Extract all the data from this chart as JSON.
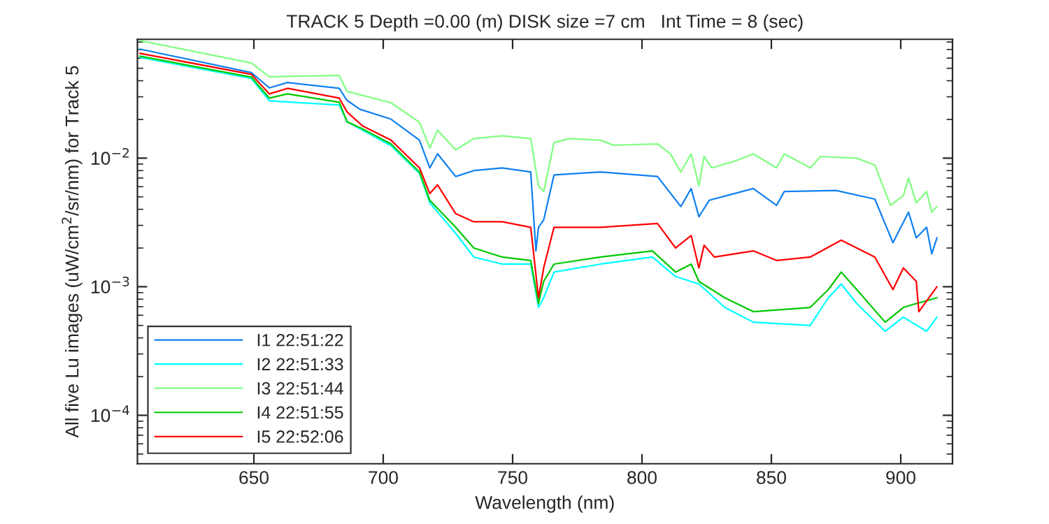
{
  "chart_data": {
    "type": "line",
    "title": "TRACK 5 Depth =0.00 (m) DISK size =7 cm   Int Time = 8 (sec)",
    "xlabel": "Wavelength (nm)",
    "ylabel": "All five Lu images (uW/cm$^{2}$/sr/nm) for Track 5",
    "log": "y",
    "xlim": [
      605,
      920
    ],
    "ylim": [
      4.2e-05,
      0.084
    ],
    "xticks": [
      650,
      700,
      750,
      800,
      850,
      900
    ],
    "yticks": [
      {
        "value": 0.0001,
        "label": "10$^{−4}$"
      },
      {
        "value": 0.001,
        "label": "10$^{−3}$"
      },
      {
        "value": 0.01,
        "label": "10$^{−2}$"
      }
    ],
    "grid": false,
    "legend": "bottom left",
    "line_style": "solid",
    "marker": "none",
    "series": [
      {
        "name": "I1 22:51:22",
        "color": "#1080f0",
        "x": [
          606,
          649,
          656,
          663,
          683,
          686,
          691,
          703,
          714,
          718,
          721,
          728,
          735,
          746,
          757,
          759,
          760,
          762,
          766,
          784,
          806,
          815,
          819,
          822,
          826,
          843,
          852,
          855,
          875,
          890,
          897,
          903,
          906,
          910,
          912,
          914
        ],
        "values": [
          0.0705,
          0.0463,
          0.0352,
          0.0387,
          0.0349,
          0.0281,
          0.024,
          0.0201,
          0.0138,
          0.0084,
          0.0108,
          0.0072,
          0.008,
          0.0084,
          0.0078,
          0.0019,
          0.0029,
          0.0033,
          0.0074,
          0.0078,
          0.0072,
          0.0042,
          0.0058,
          0.0035,
          0.0047,
          0.0058,
          0.0043,
          0.0055,
          0.0056,
          0.0048,
          0.0022,
          0.0038,
          0.0024,
          0.0029,
          0.0018,
          0.0024
        ]
      },
      {
        "name": "I2 22:51:33",
        "color": "#00ffff",
        "x": [
          606,
          649,
          656,
          683,
          686,
          703,
          714,
          718,
          728,
          735,
          746,
          757,
          760,
          762,
          766,
          784,
          804,
          813,
          822,
          832,
          843,
          865,
          872,
          877,
          883,
          894,
          901,
          910,
          914
        ],
        "values": [
          0.0607,
          0.0417,
          0.0279,
          0.0259,
          0.0192,
          0.0125,
          0.0076,
          0.0045,
          0.0026,
          0.0017,
          0.0015,
          0.0015,
          0.00069,
          0.00082,
          0.0013,
          0.0015,
          0.0017,
          0.0012,
          0.00105,
          0.00069,
          0.00053,
          0.0005,
          0.00082,
          0.00105,
          0.00074,
          0.00045,
          0.00058,
          0.00045,
          0.00058
        ]
      },
      {
        "name": "I3 22:51:44",
        "color": "#80ff80",
        "x": [
          606,
          649,
          656,
          683,
          686,
          703,
          714,
          718,
          721,
          728,
          735,
          746,
          757,
          760,
          762,
          766,
          772,
          784,
          789,
          806,
          811,
          815,
          819,
          822,
          824,
          827,
          836,
          843,
          852,
          855,
          865,
          869,
          883,
          890,
          896,
          901,
          903,
          906,
          910,
          912,
          914
        ],
        "values": [
          0.082,
          0.055,
          0.043,
          0.044,
          0.033,
          0.027,
          0.019,
          0.012,
          0.0165,
          0.0116,
          0.0142,
          0.0149,
          0.0142,
          0.0061,
          0.0055,
          0.0132,
          0.0142,
          0.0138,
          0.0126,
          0.0129,
          0.0108,
          0.0078,
          0.0108,
          0.0061,
          0.0103,
          0.0084,
          0.0095,
          0.0108,
          0.0084,
          0.0108,
          0.0084,
          0.0103,
          0.01,
          0.0088,
          0.0043,
          0.0051,
          0.007,
          0.0045,
          0.0055,
          0.0038,
          0.0042
        ]
      },
      {
        "name": "I4 22:51:55",
        "color": "#00c800",
        "x": [
          606,
          649,
          656,
          663,
          683,
          686,
          692,
          703,
          714,
          718,
          728,
          735,
          746,
          757,
          760,
          762,
          766,
          784,
          804,
          813,
          819,
          822,
          832,
          843,
          865,
          872,
          877,
          883,
          894,
          901,
          906,
          914
        ],
        "values": [
          0.0621,
          0.0427,
          0.0293,
          0.0316,
          0.0272,
          0.0192,
          0.0169,
          0.0129,
          0.0078,
          0.0047,
          0.0029,
          0.002,
          0.0017,
          0.0016,
          0.00074,
          0.0011,
          0.0015,
          0.0017,
          0.0019,
          0.0013,
          0.0015,
          0.0011,
          0.00082,
          0.00064,
          0.00069,
          0.00095,
          0.0013,
          0.00095,
          0.00053,
          0.00069,
          0.00074,
          0.00082
        ]
      },
      {
        "name": "I5 22:52:06",
        "color": "#ff0000",
        "x": [
          606,
          649,
          656,
          663,
          683,
          686,
          692,
          703,
          714,
          718,
          721,
          728,
          735,
          746,
          757,
          760,
          762,
          766,
          784,
          806,
          813,
          819,
          822,
          824,
          828,
          843,
          852,
          865,
          877,
          890,
          897,
          901,
          906,
          907,
          914
        ],
        "values": [
          0.0653,
          0.0449,
          0.0316,
          0.0349,
          0.0293,
          0.0229,
          0.0178,
          0.0138,
          0.0084,
          0.0053,
          0.0062,
          0.0037,
          0.0032,
          0.0032,
          0.0029,
          0.00082,
          0.0014,
          0.0029,
          0.0029,
          0.0031,
          0.002,
          0.0025,
          0.0014,
          0.0021,
          0.0017,
          0.0019,
          0.0016,
          0.0017,
          0.0023,
          0.0017,
          0.00095,
          0.0014,
          0.0011,
          0.00064,
          0.001
        ]
      }
    ]
  }
}
